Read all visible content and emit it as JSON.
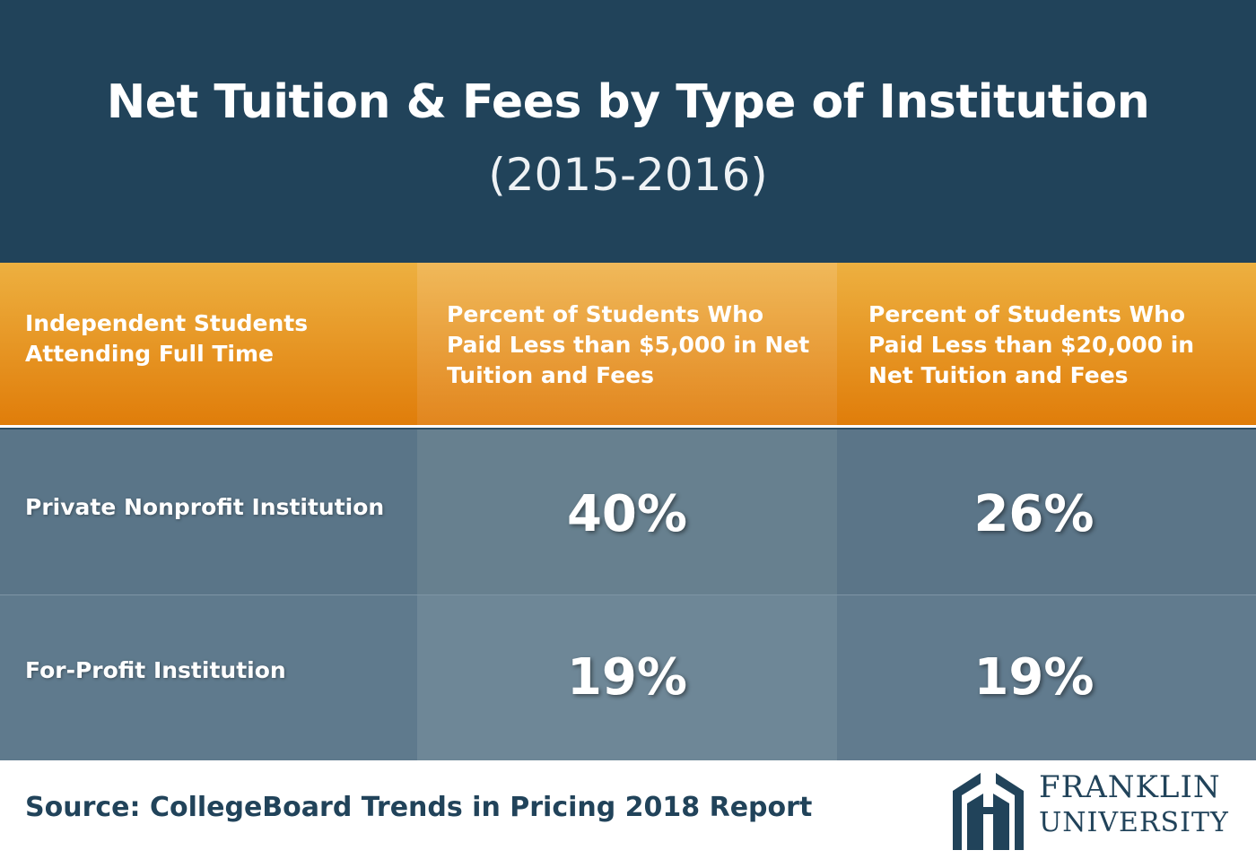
{
  "title": "Net Tuition & Fees by Type of Institution",
  "subtitle": "(2015-2016)",
  "chart_data": {
    "type": "table",
    "columns": [
      "Independent Students Attending Full Time",
      "Percent of Students Who Paid Less than $5,000 in Net Tuition and Fees",
      "Percent of Students Who Paid Less than $20,000 in Net Tuition and Fees"
    ],
    "rows": [
      {
        "label": "Private Nonprofit Institution",
        "values": [
          "40%",
          "26%"
        ]
      },
      {
        "label": "For-Profit Institution",
        "values": [
          "19%",
          "19%"
        ]
      }
    ]
  },
  "source": "Source: CollegeBoard Trends in Pricing 2018 Report",
  "logo": {
    "line1": "FRANKLIN",
    "line2": "UNIVERSITY",
    "icon": "franklin-arch-logo-icon"
  },
  "colors": {
    "header_bg": "#21435a",
    "column_header": "#e8951f",
    "cell_bg": "#5a7588",
    "source_text": "#21435a"
  }
}
